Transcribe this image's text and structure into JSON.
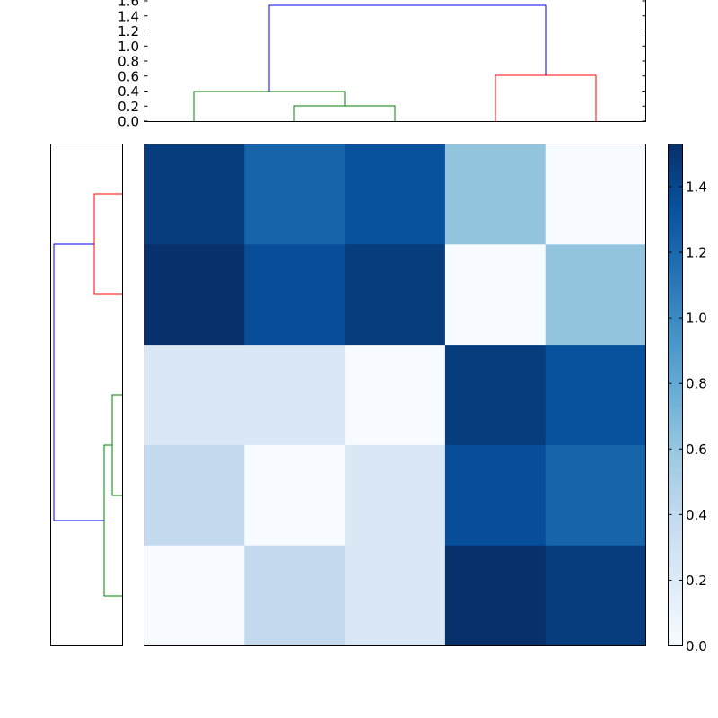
{
  "chart_data": {
    "type": "heatmap",
    "title": "",
    "description": "Clustered heatmap with column dendrogram (top), row dendrogram (left) and colorbar (right)",
    "matrix": [
      [
        1.42,
        1.15,
        1.28,
        0.62,
        0.0
      ],
      [
        1.53,
        1.3,
        1.42,
        0.0,
        0.62
      ],
      [
        0.22,
        0.22,
        0.0,
        1.42,
        1.28
      ],
      [
        0.4,
        0.0,
        0.22,
        1.3,
        1.15
      ],
      [
        0.0,
        0.4,
        0.22,
        1.53,
        1.42
      ]
    ],
    "cell_colors": [
      [
        "#083d7d",
        "#1764ab",
        "#08519c",
        "#92c4de",
        "#f7fbff"
      ],
      [
        "#08306b",
        "#084d97",
        "#083d7d",
        "#f7fbff",
        "#92c4de"
      ],
      [
        "#dae8f5",
        "#dae8f5",
        "#f7fbff",
        "#083d7d",
        "#08519c"
      ],
      [
        "#c3d9ee",
        "#f7fbff",
        "#dae8f5",
        "#084d97",
        "#1764ab"
      ],
      [
        "#f7fbff",
        "#c3d9ee",
        "#dae8f5",
        "#08306b",
        "#083d7d"
      ]
    ],
    "colormap": "Blues",
    "colorbar": {
      "range": [
        0.0,
        1.53
      ],
      "ticks": [
        "0.0",
        "0.2",
        "0.4",
        "0.6",
        "0.8",
        "1.0",
        "1.2",
        "1.4"
      ]
    },
    "top_dendrogram": {
      "ylim": [
        0.0,
        1.6
      ],
      "yticks": [
        "0.0",
        "0.2",
        "0.4",
        "0.6",
        "0.8",
        "1.0",
        "1.2",
        "1.4",
        "1.6"
      ],
      "merges": [
        {
          "leaves": "2,3",
          "height": 0.22,
          "color": "#008000"
        },
        {
          "leaves": "1,(2,3)",
          "height": 0.4,
          "color": "#008000"
        },
        {
          "leaves": "4,5",
          "height": 0.62,
          "color": "#ff0000"
        },
        {
          "leaves": "root",
          "height": 1.53,
          "color": "#0000ff"
        }
      ]
    },
    "left_dendrogram": {
      "merges": [
        {
          "leaves": "row1,row2",
          "color": "#ff0000"
        },
        {
          "leaves": "row3,row4",
          "color": "#008000"
        },
        {
          "leaves": "(row3,row4),row5",
          "color": "#008000"
        },
        {
          "leaves": "root",
          "color": "#0000ff"
        }
      ]
    }
  }
}
